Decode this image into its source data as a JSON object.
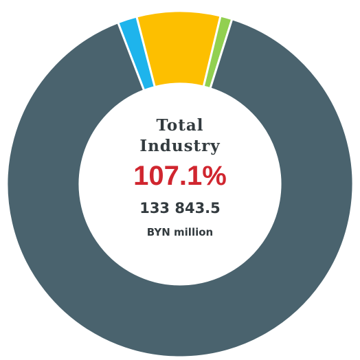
{
  "chart_data": {
    "type": "donut",
    "categories": [
      null,
      null,
      null,
      null
    ],
    "values": [
      1.8,
      7.8,
      1.1,
      89.3
    ],
    "colors": [
      "#1eb4ec",
      "#fdbf00",
      "#92d050",
      "#4a636e"
    ],
    "center_title": "Total Industry",
    "center_value": "107.1%",
    "center_amount": "133 843.5",
    "center_unit": "BYN million"
  }
}
